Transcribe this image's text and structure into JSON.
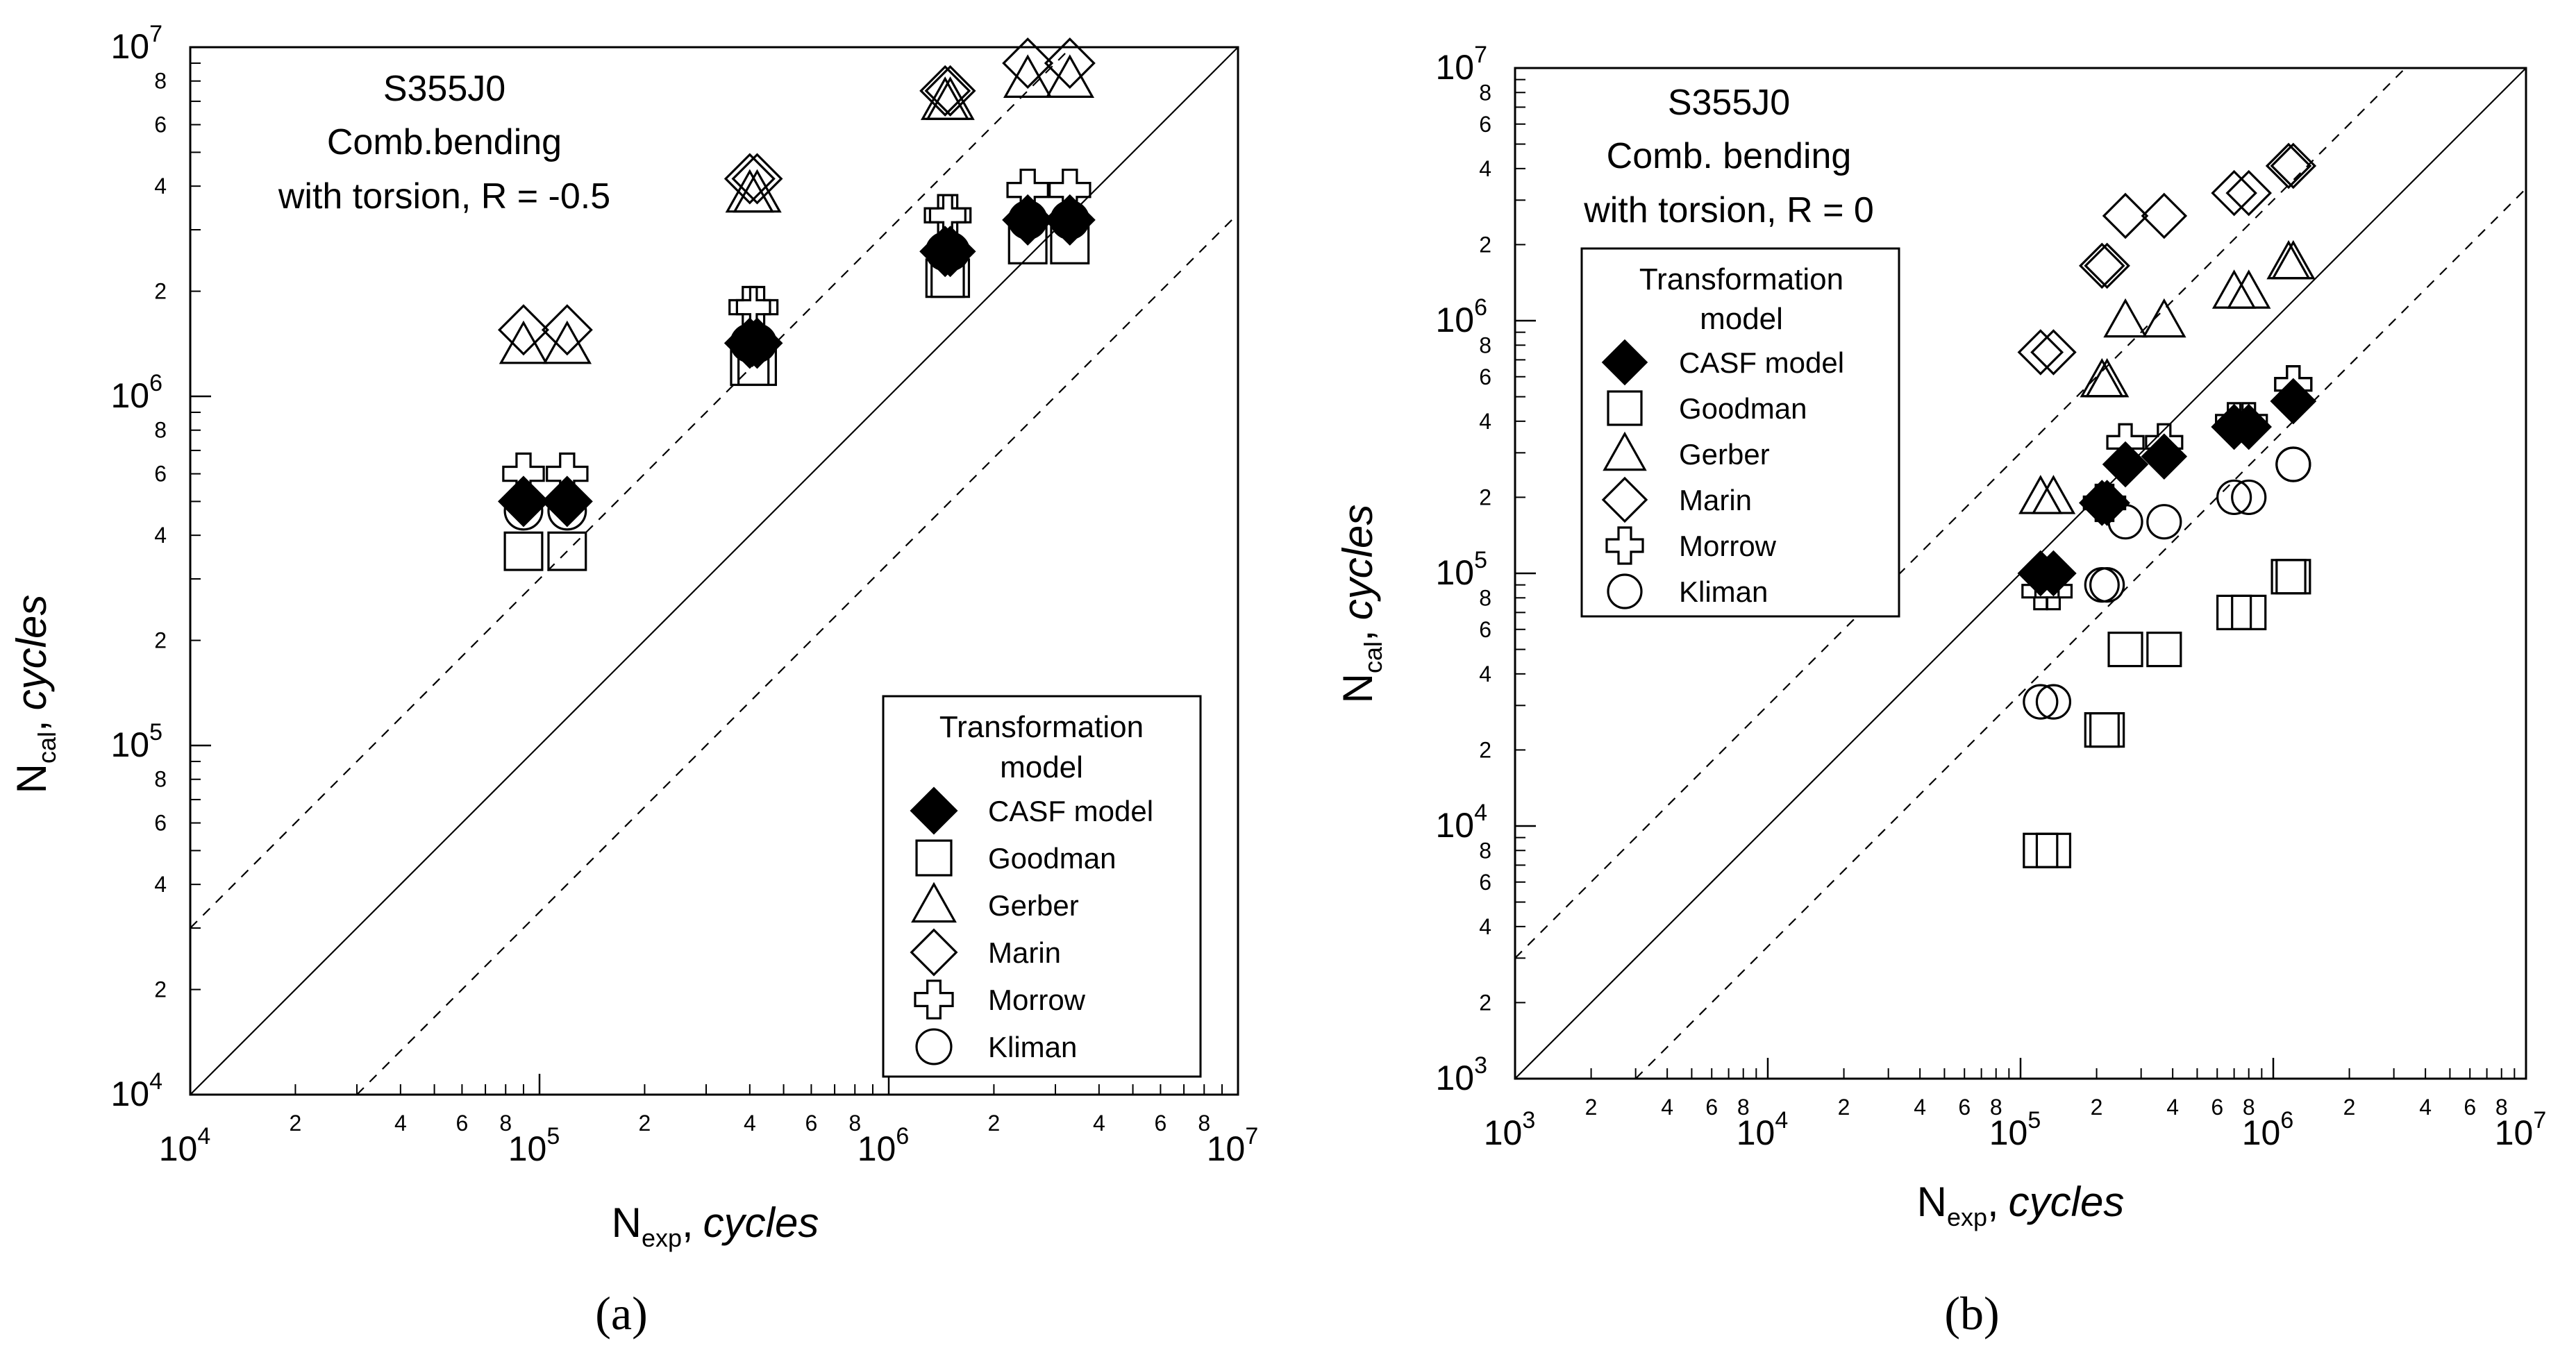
{
  "chart_data": [
    {
      "type": "scatter",
      "panel_label": "(a)",
      "xlabel_main": "N",
      "xlabel_sub": "exp",
      "xlabel_sep": ",",
      "xlabel_unit": "cycles",
      "ylabel_main": "N",
      "ylabel_sub": "cal",
      "ylabel_sep": ",",
      "ylabel_unit": "cycles",
      "xlim": [
        10000,
        10000000
      ],
      "ylim": [
        10000,
        10000000
      ],
      "scale": "log",
      "major_ticks": [
        {
          "base": "10",
          "exp": "4"
        },
        {
          "base": "10",
          "exp": "5"
        },
        {
          "base": "10",
          "exp": "6"
        },
        {
          "base": "10",
          "exp": "7"
        }
      ],
      "minor_tick_labels": [
        "2",
        "4",
        "6",
        "8"
      ],
      "title_lines": [
        "S355J0",
        "Comb.bending",
        "with torsion, R = -0.5"
      ],
      "legend_title_lines": [
        "Transformation",
        "model"
      ],
      "legend_position": "bottom-right",
      "scatter_band_factor": 3,
      "series": [
        {
          "name": "CASF model",
          "marker": "diamond-filled",
          "x": [
            90000,
            120000,
            400000,
            420000,
            1450000,
            1500000,
            2500000,
            3300000
          ],
          "y": [
            500000,
            500000,
            1420000,
            1420000,
            2600000,
            2600000,
            3200000,
            3200000
          ]
        },
        {
          "name": "Goodman",
          "marker": "square",
          "x": [
            90000,
            120000,
            400000,
            420000,
            1450000,
            1500000,
            2500000,
            3300000
          ],
          "y": [
            360000,
            360000,
            1220000,
            1220000,
            2180000,
            2180000,
            2720000,
            2720000
          ]
        },
        {
          "name": "Gerber",
          "marker": "triangle",
          "x": [
            90000,
            120000,
            400000,
            420000,
            1450000,
            1500000,
            2500000,
            3300000
          ],
          "y": [
            1400000,
            1400000,
            3800000,
            3800000,
            7000000,
            7000000,
            8100000,
            8100000
          ]
        },
        {
          "name": "Marin",
          "marker": "diamond",
          "x": [
            90000,
            120000,
            400000,
            420000,
            1450000,
            1500000,
            2500000,
            3300000
          ],
          "y": [
            1550000,
            1550000,
            4200000,
            4200000,
            7500000,
            7500000,
            9000000,
            9000000
          ]
        },
        {
          "name": "Morrow",
          "marker": "cross",
          "x": [
            90000,
            120000,
            400000,
            420000,
            1450000,
            1500000,
            2500000,
            3300000
          ],
          "y": [
            600000,
            600000,
            1800000,
            1800000,
            3300000,
            3300000,
            3900000,
            3900000
          ]
        },
        {
          "name": "Kliman",
          "marker": "circle",
          "x": [
            90000,
            120000,
            400000,
            420000,
            1450000,
            1500000,
            2500000,
            3300000
          ],
          "y": [
            470000,
            470000,
            1420000,
            1420000,
            2600000,
            2600000,
            3200000,
            3200000
          ]
        }
      ]
    },
    {
      "type": "scatter",
      "panel_label": "(b)",
      "xlabel_main": "N",
      "xlabel_sub": "exp",
      "xlabel_sep": ",",
      "xlabel_unit": "cycles",
      "ylabel_main": "N",
      "ylabel_sub": "cal",
      "ylabel_sep": ",",
      "ylabel_unit": "cycles",
      "xlim": [
        1000,
        10000000
      ],
      "ylim": [
        1000,
        10000000
      ],
      "scale": "log",
      "major_ticks": [
        {
          "base": "10",
          "exp": "3"
        },
        {
          "base": "10",
          "exp": "4"
        },
        {
          "base": "10",
          "exp": "5"
        },
        {
          "base": "10",
          "exp": "6"
        },
        {
          "base": "10",
          "exp": "7"
        }
      ],
      "minor_tick_labels": [
        "2",
        "4",
        "6",
        "8"
      ],
      "title_lines": [
        "S355J0",
        "Comb. bending",
        "with torsion, R = 0"
      ],
      "legend_title_lines": [
        "Transformation",
        "model"
      ],
      "legend_position": "top-left",
      "scatter_band_factor": 3,
      "series": [
        {
          "name": "CASF model",
          "marker": "diamond-filled",
          "x": [
            120000,
            135000,
            210000,
            220000,
            260000,
            370000,
            700000,
            800000,
            1200000,
            1200000
          ],
          "y": [
            100000,
            100000,
            190000,
            190000,
            270000,
            290000,
            380000,
            380000,
            480000,
            480000
          ]
        },
        {
          "name": "Goodman",
          "marker": "square",
          "x": [
            120000,
            135000,
            210000,
            220000,
            260000,
            370000,
            700000,
            800000,
            1150000,
            1200000
          ],
          "y": [
            8000,
            8000,
            24000,
            24000,
            50000,
            50000,
            70000,
            70000,
            97000,
            97000
          ]
        },
        {
          "name": "Gerber",
          "marker": "triangle",
          "x": [
            120000,
            135000,
            210000,
            220000,
            260000,
            370000,
            700000,
            800000,
            1150000,
            1200000
          ],
          "y": [
            200000,
            200000,
            580000,
            580000,
            1000000,
            1000000,
            1300000,
            1300000,
            1700000,
            1700000
          ]
        },
        {
          "name": "Marin",
          "marker": "diamond",
          "x": [
            120000,
            135000,
            210000,
            220000,
            260000,
            370000,
            700000,
            800000,
            1150000,
            1200000
          ],
          "y": [
            750000,
            750000,
            1650000,
            1650000,
            2600000,
            2600000,
            3200000,
            3200000,
            4100000,
            4100000
          ]
        },
        {
          "name": "Morrow",
          "marker": "cross",
          "x": [
            120000,
            135000,
            210000,
            220000,
            260000,
            370000,
            700000,
            800000,
            1200000,
            1200000
          ],
          "y": [
            85000,
            85000,
            190000,
            190000,
            330000,
            330000,
            400000,
            400000,
            560000,
            560000
          ]
        },
        {
          "name": "Kliman",
          "marker": "circle",
          "x": [
            120000,
            135000,
            210000,
            220000,
            260000,
            370000,
            700000,
            800000,
            1200000,
            1200000
          ],
          "y": [
            31000,
            31000,
            90000,
            90000,
            160000,
            160000,
            200000,
            200000,
            270000,
            270000
          ]
        }
      ]
    }
  ]
}
